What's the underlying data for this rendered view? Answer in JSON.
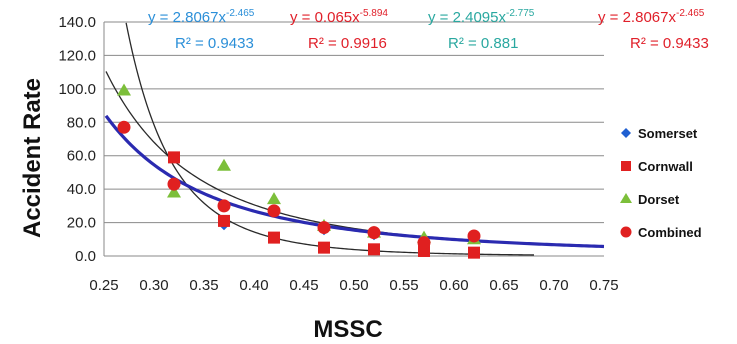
{
  "chart_data": {
    "type": "scatter",
    "xlabel": "MSSC",
    "ylabel": "Accident Rate",
    "xlim": [
      0.25,
      0.75
    ],
    "ylim": [
      0,
      140
    ],
    "x_ticks": [
      0.25,
      0.3,
      0.35,
      0.4,
      0.45,
      0.5,
      0.55,
      0.6,
      0.65,
      0.7,
      0.75
    ],
    "x_tick_labels": [
      "0.25",
      "0.30",
      "0.35",
      "0.40",
      "0.45",
      "0.50",
      "0.55",
      "0.60",
      "0.65",
      "0.70",
      "0.75"
    ],
    "y_ticks": [
      0,
      20,
      40,
      60,
      80,
      100,
      120,
      140
    ],
    "y_tick_labels": [
      "0.0",
      "20.0",
      "40.0",
      "60.0",
      "80.0",
      "100.0",
      "120.0",
      "140.0"
    ],
    "grid": "horizontal",
    "legend_position": "right",
    "series": [
      {
        "name": "Somerset",
        "marker": "diamond",
        "color": "#1f5fd1",
        "x": [
          0.37,
          0.42,
          0.47,
          0.52,
          0.62
        ],
        "y": [
          19,
          27,
          16,
          13,
          11
        ]
      },
      {
        "name": "Cornwall",
        "marker": "square",
        "color": "#e02020",
        "x": [
          0.32,
          0.37,
          0.42,
          0.47,
          0.52,
          0.57,
          0.62
        ],
        "y": [
          59,
          21,
          11,
          5,
          4,
          3,
          2
        ]
      },
      {
        "name": "Dorset",
        "marker": "triangle",
        "color": "#7cbf3a",
        "x": [
          0.27,
          0.32,
          0.37,
          0.42,
          0.47,
          0.52,
          0.57,
          0.62
        ],
        "y": [
          99,
          38,
          54,
          34,
          18,
          14,
          11,
          10
        ]
      },
      {
        "name": "Combined",
        "marker": "circle",
        "color": "#e02020",
        "x": [
          0.27,
          0.32,
          0.37,
          0.42,
          0.47,
          0.52,
          0.57,
          0.62
        ],
        "y": [
          77,
          43,
          30,
          27,
          17,
          14,
          8,
          12
        ]
      }
    ],
    "trendlines": [
      {
        "color": "#2a2a2a",
        "width": 1.3,
        "a": 2.4095,
        "b": -2.775,
        "x_range": [
          0.252,
          0.68
        ]
      },
      {
        "color": "#2a2a2a",
        "width": 1.3,
        "a": 0.065,
        "b": -5.894,
        "x_range": [
          0.268,
          0.68
        ]
      },
      {
        "color": "#2a2ab0",
        "width": 3.2,
        "a": 2.8067,
        "b": -2.465,
        "x_range": [
          0.252,
          0.75
        ]
      }
    ],
    "equations": [
      {
        "text": "y = 2.8067x",
        "exp": "-2.465",
        "r2": "R² = 0.9433",
        "color": "#2b8fd8"
      },
      {
        "text": "y = 0.065x",
        "exp": "-5.894",
        "r2": "R² = 0.9916",
        "color": "#e0202a"
      },
      {
        "text": "y = 2.4095x",
        "exp": "-2.775",
        "r2": "R² = 0.881",
        "color": "#2aa8a0"
      },
      {
        "text": "y = 2.8067x",
        "exp": "-2.465",
        "r2": "R² = 0.9433",
        "color": "#e0202a"
      }
    ]
  }
}
